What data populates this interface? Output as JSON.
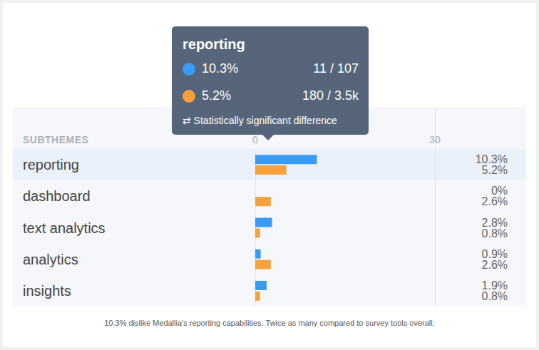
{
  "chart_data": {
    "type": "bar",
    "orientation": "horizontal",
    "column_header": "SUBTHEMES",
    "categories": [
      "reporting",
      "dashboard",
      "text analytics",
      "analytics",
      "insights"
    ],
    "series": [
      {
        "color": "#3a9bf4",
        "values": [
          10.3,
          0,
          2.8,
          0.9,
          1.9
        ],
        "value_labels": [
          "10.3%",
          "0%",
          "2.8%",
          "0.9%",
          "1.9%"
        ]
      },
      {
        "color": "#f6a23c",
        "values": [
          5.2,
          2.6,
          0.8,
          2.6,
          0.8
        ],
        "value_labels": [
          "5.2%",
          "2.6%",
          "0.8%",
          "2.6%",
          "0.8%"
        ]
      }
    ],
    "xlim": [
      0,
      30
    ],
    "xticks": [
      0,
      30
    ],
    "grid": true,
    "data_labels": true,
    "caption": "10.3% dislike Medallia's reporting capabilities. Twice as many compared to survey tools overall.",
    "tooltip": {
      "title": "reporting",
      "counts": [
        "11 / 107",
        "180 / 3.5k"
      ],
      "note": "⇄ Statistically significant difference"
    }
  }
}
